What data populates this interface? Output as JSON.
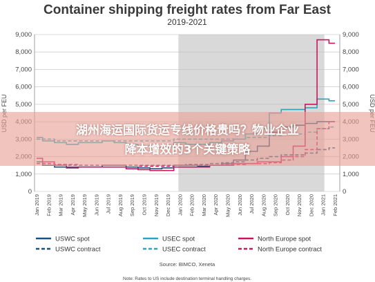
{
  "chart_data": {
    "type": "line",
    "title": "Container shipping freight rates from Far East",
    "subtitle": "2019-2021",
    "ylabel": "USD per FEU",
    "ylim": [
      0,
      9000
    ],
    "yticks": [
      "0",
      "1,000",
      "2,000",
      "3,000",
      "4,000",
      "5,000",
      "6,000",
      "7,000",
      "8,000",
      "9,000"
    ],
    "categories": [
      "Jan 2019",
      "Feb 2019",
      "Mar 2019",
      "Apr 2019",
      "May 2019",
      "Jun 2019",
      "Jul 2019",
      "Aug 2019",
      "Sep 2019",
      "Oct 2019",
      "Nov 2019",
      "Dec 2019",
      "Jan 2020",
      "Feb 2020",
      "Mar 2020",
      "Apr 2020",
      "May 2020",
      "Jun 2020",
      "Jul 2020",
      "Aug 2020",
      "Sep 2020",
      "Oct 2020",
      "Nov 2020",
      "Dec 2020",
      "Jan 2021",
      "Feb 2021"
    ],
    "shaded_range": [
      "Jan 2020",
      "Jan 2021"
    ],
    "colors": {
      "uswc": "#1f4e79",
      "usec": "#2aa5b8",
      "north_europe": "#c2185b",
      "shade": "#d9d9d9"
    },
    "series": [
      {
        "name": "USWC spot",
        "key": "uswc",
        "style": "solid",
        "values": [
          1700,
          1500,
          1400,
          1350,
          1400,
          1400,
          1500,
          1500,
          1400,
          1350,
          1300,
          1350,
          1500,
          1500,
          1450,
          1500,
          1600,
          1800,
          2300,
          2600,
          3400,
          3700,
          3800,
          3900,
          4000,
          4000
        ]
      },
      {
        "name": "USWC contract",
        "key": "uswc",
        "style": "dashed",
        "values": [
          1600,
          1600,
          1550,
          1500,
          1500,
          1500,
          1500,
          1500,
          1500,
          1500,
          1500,
          1500,
          1500,
          1550,
          1550,
          1600,
          1650,
          1700,
          1800,
          1900,
          2000,
          2100,
          2100,
          2200,
          2400,
          2500
        ]
      },
      {
        "name": "USEC spot",
        "key": "usec",
        "style": "solid",
        "values": [
          3100,
          2900,
          2800,
          2700,
          2800,
          2800,
          2900,
          2800,
          2700,
          2600,
          2500,
          2600,
          2800,
          2700,
          2700,
          2800,
          2900,
          3000,
          3300,
          3600,
          4500,
          4700,
          4700,
          4800,
          5300,
          5200
        ]
      },
      {
        "name": "USEC contract",
        "key": "usec",
        "style": "dashed",
        "values": [
          3000,
          3000,
          2900,
          2900,
          2900,
          2900,
          2900,
          2900,
          2900,
          2900,
          2900,
          2900,
          3000,
          3000,
          3000,
          3000,
          3000,
          3000,
          3100,
          3100,
          3200,
          3300,
          3300,
          3400,
          3600,
          3700
        ]
      },
      {
        "name": "North Europe spot",
        "key": "north_europe",
        "style": "solid",
        "values": [
          1900,
          1700,
          1500,
          1400,
          1400,
          1400,
          1400,
          1400,
          1300,
          1250,
          1200,
          1200,
          1400,
          1400,
          1400,
          1500,
          1500,
          1600,
          1600,
          1700,
          1700,
          2000,
          2600,
          5000,
          8700,
          8500
        ]
      },
      {
        "name": "North Europe contract",
        "key": "north_europe",
        "style": "dashed",
        "values": [
          1600,
          1600,
          1550,
          1550,
          1500,
          1500,
          1500,
          1500,
          1500,
          1450,
          1450,
          1450,
          1500,
          1500,
          1500,
          1500,
          1550,
          1550,
          1600,
          1600,
          1650,
          1800,
          2000,
          2400,
          3600,
          4000
        ]
      }
    ],
    "legend": [
      {
        "label": "USWC spot",
        "key": "uswc",
        "style": "solid"
      },
      {
        "label": "USEC spot",
        "key": "usec",
        "style": "solid"
      },
      {
        "label": "North Europe spot",
        "key": "north_europe",
        "style": "solid"
      },
      {
        "label": "USWC contract",
        "key": "uswc",
        "style": "dashed"
      },
      {
        "label": "USEC contract",
        "key": "usec",
        "style": "dashed"
      },
      {
        "label": "North Europe contract",
        "key": "north_europe",
        "style": "dashed"
      }
    ],
    "source": "Source: BIMCO, Xeneta",
    "note": "Note: Rates to US include destination terminal handling charges."
  },
  "overlay": {
    "line1": "湖州海运国际货运专线价格贵吗？物业企业",
    "line2": "降本增效的3个关键策略"
  }
}
